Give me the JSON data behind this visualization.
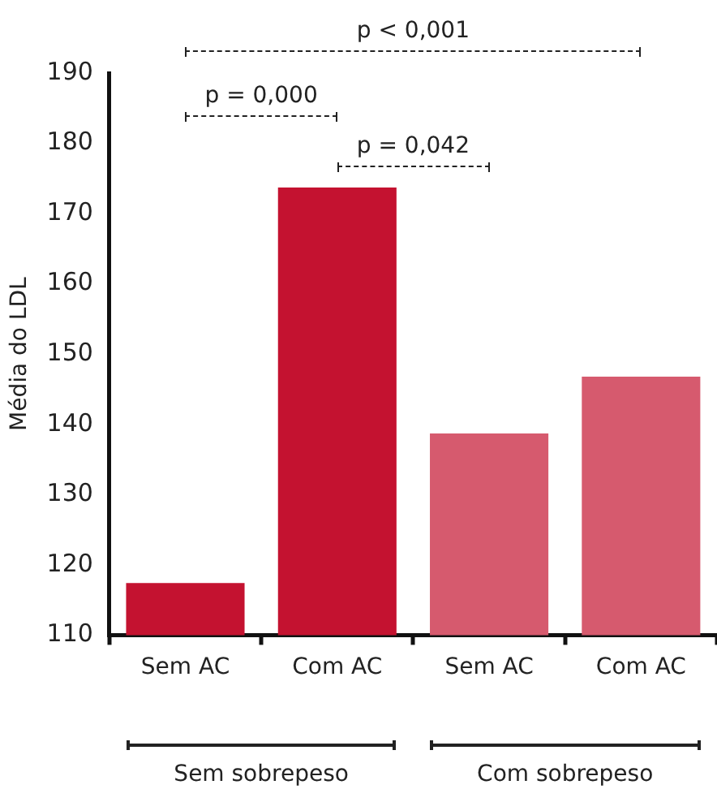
{
  "chart_data": {
    "type": "bar",
    "ylabel": "Média do LDL",
    "categories": [
      "Sem AC",
      "Com AC",
      "Sem AC",
      "Com AC"
    ],
    "values": [
      117.4,
      173.7,
      138.7,
      146.8
    ],
    "colors": [
      "#c41230",
      "#c41230",
      "#d65a6e",
      "#d65a6e"
    ],
    "ylim": [
      110,
      190
    ],
    "yticks": [
      110,
      120,
      130,
      140,
      150,
      160,
      170,
      180,
      190
    ],
    "grid": false,
    "legend": false,
    "annotations": [
      "p < 0,001",
      "p = 0,000",
      "p = 0,042",
      "Sem sobrepeso",
      "Com sobrepeso"
    ]
  }
}
